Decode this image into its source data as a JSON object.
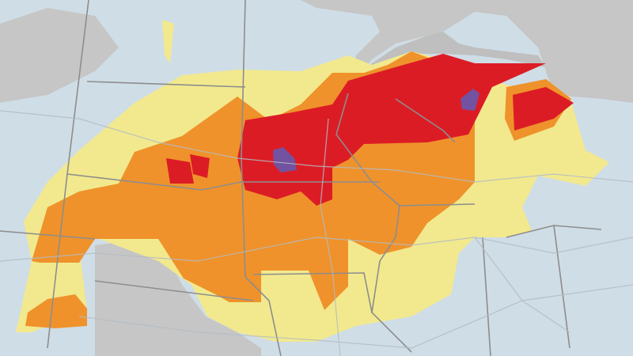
{
  "map": {
    "colors": {
      "background": "#cfdde6",
      "land_outside": "#c6c6c6",
      "water": "#c0c0c0",
      "level_1": "#f2e98e",
      "level_2": "#ef922b",
      "level_3": "#dc1c25",
      "level_4": "#7352a1",
      "borders": "#8d8d8d",
      "roads": "#b3bcc3"
    }
  }
}
